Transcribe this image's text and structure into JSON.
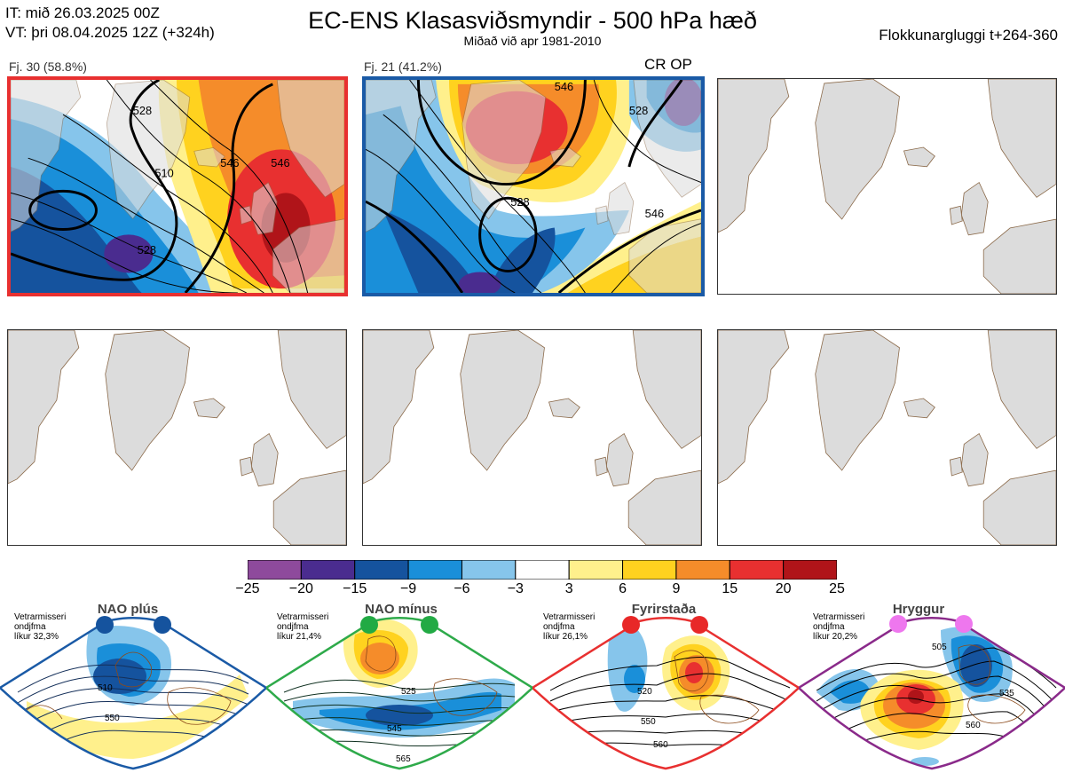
{
  "header": {
    "init_time": "IT: mið 26.03.2025 00Z",
    "valid_time": "VT: þri 08.04.2025 12Z  (+324h)",
    "title": "EC-ENS Klasasviðsmyndir - 500 hPa hæð",
    "subtitle": "Miðað við apr 1981-2010",
    "window": "Flokkunargluggi t+264-360"
  },
  "clusters": [
    {
      "label": "Fj. 30 (58.8%)",
      "border_color": "#e83030",
      "contours": [
        "510",
        "528",
        "546",
        "546",
        "528"
      ]
    },
    {
      "label": "Fj. 21 (41.2%)",
      "border_color": "#1a5aa6",
      "contours": [
        "528",
        "546",
        "546",
        "528"
      ],
      "tag": "CR OP"
    }
  ],
  "colorbar": {
    "ticks": [
      "−25",
      "−20",
      "−15",
      "−9",
      "−6",
      "−3",
      "3",
      "6",
      "9",
      "15",
      "20",
      "25"
    ],
    "colors": [
      "#8e4a9c",
      "#4a2c8f",
      "#15539e",
      "#1a8fd9",
      "#86c5eb",
      "#ffffff",
      "#fff08c",
      "#ffd21f",
      "#f58c2a",
      "#e83030",
      "#b01419"
    ]
  },
  "regimes": [
    {
      "name": "NAO plús",
      "info": [
        "Vetrarmisseri",
        "ondjfma",
        "líkur 32,3%"
      ],
      "color": "#1a5aa6",
      "dot_color": "#15539e",
      "contours": [
        "510",
        "550"
      ]
    },
    {
      "name": "NAO mínus",
      "info": [
        "Vetrarmisseri",
        "ondjfma",
        "líkur 21,4%"
      ],
      "color": "#2eaa4a",
      "dot_color": "#22aa44",
      "contours": [
        "525",
        "545",
        "565"
      ]
    },
    {
      "name": "Fyrirstaða",
      "info": [
        "Vetrarmisseri",
        "ondjfma",
        "líkur 26,1%"
      ],
      "color": "#e83030",
      "dot_color": "#e82828",
      "contours": [
        "520",
        "550",
        "560"
      ]
    },
    {
      "name": "Hryggur",
      "info": [
        "Vetrarmisseri",
        "ondjfma",
        "líkur 20,2%"
      ],
      "color": "#8a2a8a",
      "dot_color": "#ee77ee",
      "contours": [
        "505",
        "535",
        "560"
      ]
    }
  ]
}
